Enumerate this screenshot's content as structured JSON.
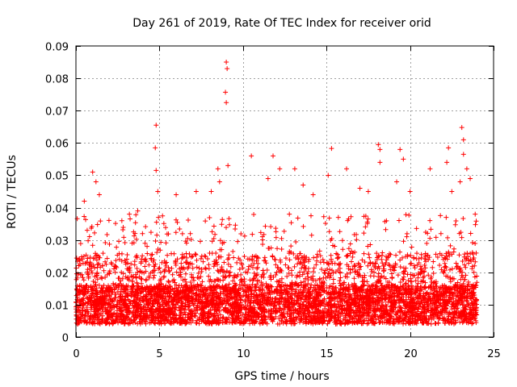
{
  "chart_data": {
    "type": "scatter",
    "title": "Day 261 of 2019, Rate Of TEC Index for receiver orid",
    "xlabel": "GPS time / hours",
    "ylabel": "ROTI / TECUs",
    "xlim": [
      0,
      25
    ],
    "ylim": [
      0,
      0.09
    ],
    "xticks": [
      0,
      5,
      10,
      15,
      20,
      25
    ],
    "xtick_labels": [
      "0",
      "5",
      "10",
      "15",
      "20",
      "25"
    ],
    "yticks": [
      0,
      0.01,
      0.02,
      0.03,
      0.04,
      0.05,
      0.06,
      0.07,
      0.08,
      0.09
    ],
    "ytick_labels": [
      "0",
      "0.01",
      "0.02",
      "0.03",
      "0.04",
      "0.05",
      "0.06",
      "0.07",
      "0.08",
      "0.09"
    ],
    "grid": true,
    "marker": "plus",
    "series_color": "#ff0000",
    "x_data_range": [
      0,
      24
    ],
    "points": [
      [
        1.0,
        0.051
      ],
      [
        1.2,
        0.048
      ],
      [
        1.4,
        0.044
      ],
      [
        0.5,
        0.042
      ],
      [
        3.2,
        0.038
      ],
      [
        3.7,
        0.039
      ],
      [
        4.8,
        0.0655
      ],
      [
        4.75,
        0.0585
      ],
      [
        4.8,
        0.0515
      ],
      [
        4.9,
        0.045
      ],
      [
        6.0,
        0.044
      ],
      [
        7.2,
        0.045
      ],
      [
        8.1,
        0.045
      ],
      [
        8.5,
        0.052
      ],
      [
        8.6,
        0.048
      ],
      [
        9.0,
        0.085
      ],
      [
        9.05,
        0.083
      ],
      [
        8.95,
        0.0757
      ],
      [
        9.0,
        0.0725
      ],
      [
        9.1,
        0.053
      ],
      [
        10.5,
        0.056
      ],
      [
        11.5,
        0.049
      ],
      [
        11.8,
        0.056
      ],
      [
        12.2,
        0.052
      ],
      [
        13.1,
        0.052
      ],
      [
        13.6,
        0.047
      ],
      [
        14.2,
        0.044
      ],
      [
        15.3,
        0.0583
      ],
      [
        15.1,
        0.05
      ],
      [
        16.2,
        0.052
      ],
      [
        17.0,
        0.046
      ],
      [
        17.5,
        0.045
      ],
      [
        18.1,
        0.0595
      ],
      [
        18.2,
        0.058
      ],
      [
        18.2,
        0.054
      ],
      [
        19.2,
        0.048
      ],
      [
        19.4,
        0.058
      ],
      [
        19.6,
        0.055
      ],
      [
        20.0,
        0.045
      ],
      [
        21.2,
        0.052
      ],
      [
        22.3,
        0.0585
      ],
      [
        22.2,
        0.054
      ],
      [
        22.5,
        0.045
      ],
      [
        23.1,
        0.0648
      ],
      [
        23.2,
        0.061
      ],
      [
        23.2,
        0.0565
      ],
      [
        23.0,
        0.048
      ],
      [
        23.6,
        0.049
      ],
      [
        23.9,
        0.038
      ],
      [
        23.4,
        0.052
      ]
    ]
  }
}
